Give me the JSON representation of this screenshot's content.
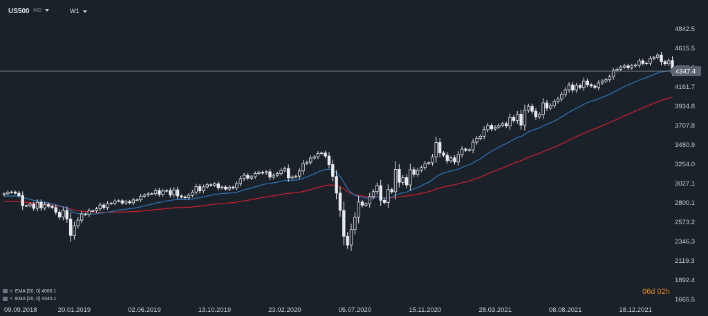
{
  "toolbar": {
    "symbol": "US500",
    "ind_label": "IND",
    "timeframe": "W1"
  },
  "current_price_label": "4347.4",
  "countdown": {
    "days": "06",
    "d": "d",
    "hours": "02",
    "h": "h"
  },
  "legend": [
    {
      "text": "EMA [50, 0] 4060.1"
    },
    {
      "text": "EMA [20, 0] 4340.1"
    }
  ],
  "colors": {
    "background": "#1b2129",
    "ema50": "#c8202a",
    "ema20": "#2b72b8",
    "candle": "#e9ecef",
    "price_line": "#6f7a86",
    "countdown": "#e88a1a"
  },
  "chart_data": {
    "type": "candlestick",
    "ylim": [
      1665.5,
      4960
    ],
    "y_ticks": [
      "4842.5",
      "4615.5",
      "4388.6",
      "4161.7",
      "3934.8",
      "3707.8",
      "3480.9",
      "3254.0",
      "3027.1",
      "2800.1",
      "2573.2",
      "2346.3",
      "2119.3",
      "1892.4",
      "1665.5"
    ],
    "x_ticks": [
      "09.09.2018",
      "20.01.2019",
      "02.06.2019",
      "13.10.2019",
      "23.02.2020",
      "05.07.2020",
      "15.11.2020",
      "28.03.2021",
      "08.08.2021",
      "18.12.2021"
    ],
    "x_tick_week_index": [
      0,
      19,
      38,
      57,
      76,
      95,
      114,
      133,
      152,
      171
    ],
    "last_price": 4347.4,
    "close": [
      2906,
      2925,
      2928,
      2914,
      2885,
      2767,
      2767,
      2785,
      2736,
      2806,
      2740,
      2782,
      2759,
      2744,
      2690,
      2633,
      2711,
      2611,
      2417,
      2531,
      2596,
      2670,
      2664,
      2707,
      2707,
      2730,
      2775,
      2745,
      2792,
      2796,
      2822,
      2825,
      2798,
      2815,
      2801,
      2834,
      2836,
      2878,
      2892,
      2906,
      2908,
      2945,
      2900,
      2939,
      2945,
      2893,
      2953,
      2881,
      2870,
      2860,
      2889,
      2926,
      2991,
      2941,
      2987,
      3013,
      3008,
      3024,
      2977,
      2986,
      2962,
      2985,
      2975,
      3027,
      3085,
      3124,
      3090,
      3108,
      3144,
      3160,
      3150,
      3166,
      3102,
      3124,
      3145,
      3181,
      3203,
      3093,
      3105,
      3114,
      3175,
      3262,
      3277,
      3327,
      3340,
      3380,
      3386,
      3350,
      3250,
      3110,
      2915,
      2712,
      2408,
      2305,
      2486,
      2630,
      2810,
      2772,
      2787,
      2875,
      2932,
      3003,
      2830,
      2804,
      2956,
      2930,
      3194,
      3041,
      3097,
      3010,
      3190,
      3135,
      3184,
      3216,
      3262,
      3271,
      3339,
      3509,
      3386,
      3360,
      3295,
      3329,
      3280,
      3367,
      3432,
      3418,
      3424,
      3513,
      3557,
      3583,
      3660,
      3710,
      3668,
      3690,
      3711,
      3732,
      3703,
      3804,
      3768,
      3841,
      3714,
      3887,
      3934,
      3876,
      3811,
      3841,
      3975,
      3913,
      3943,
      3990,
      4020,
      4075,
      4128,
      4185,
      4124,
      4180,
      4155,
      4232,
      4188,
      4173,
      4156,
      4209,
      4230,
      4247,
      4281,
      4352,
      4369,
      4395,
      4411,
      4387,
      4409,
      4419,
      4468,
      4436,
      4442,
      4495,
      4509,
      4535,
      4458,
      4432,
      4471,
      4347
    ]
  }
}
